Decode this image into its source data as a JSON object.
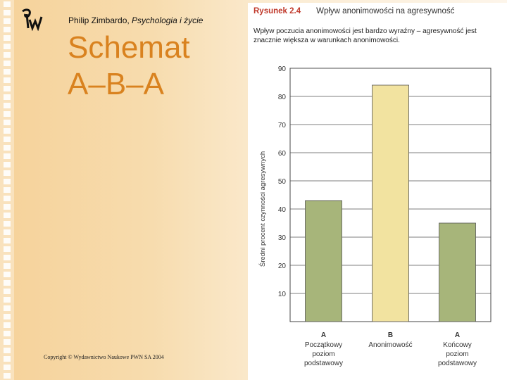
{
  "header": {
    "author": "Philip Zimbardo, ",
    "book": "Psychologia i życie"
  },
  "slide_title_line1": "Schemat",
  "slide_title_line2": "A–B–A",
  "copyright": "Copyright © Wydawnictwo Naukowe PWN SA 2004",
  "colors": {
    "title": "#d9821f",
    "bar_green": "#a7b57a",
    "bar_yellow": "#f2e3a0",
    "figure_number": "#c0392b"
  },
  "figure": {
    "number": "Rysunek 2.4",
    "title": "Wpływ anonimowości na agresywność",
    "caption": "Wpływ poczucia anonimowości jest bardzo wyraźny – agresywność jest znacznie większa w warunkach anonimowości."
  },
  "chart_data": {
    "type": "bar",
    "categories": [
      "A",
      "B",
      "A"
    ],
    "category_sublabels": [
      [
        "Początkowy",
        "poziom",
        "podstawowy"
      ],
      [
        "Anonimowość"
      ],
      [
        "Końcowy",
        "poziom",
        "podstawowy"
      ]
    ],
    "values": [
      43,
      84,
      35
    ],
    "bar_colors": [
      "#a7b57a",
      "#f2e3a0",
      "#a7b57a"
    ],
    "ylabel": "Średni procent czynności agresywnych",
    "xlabel": "",
    "yticks": [
      10,
      20,
      30,
      40,
      50,
      60,
      70,
      80,
      90
    ],
    "ylim": [
      0,
      90
    ],
    "grid": true,
    "title": ""
  }
}
